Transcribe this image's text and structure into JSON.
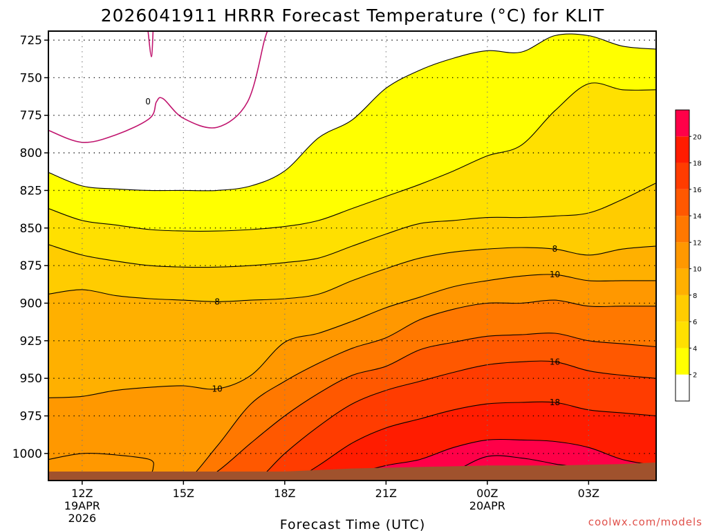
{
  "title": "2026041911 HRRR Forecast Temperature (°C) for KLIT",
  "credit": "coolwx.com/models",
  "colors": {
    "credit": "#e0504a",
    "frame": "#000000",
    "zero_line": "#c0146e",
    "ground": "#a0522d",
    "below_zero": "#ffffff",
    "band_2_4": "#ffff00",
    "band_4_6": "#ffe000",
    "band_6_8": "#ffcc00",
    "band_8_10": "#ffb000",
    "band_10_12": "#ff9800",
    "band_12_14": "#ff7800",
    "band_14_16": "#ff5800",
    "band_16_18": "#ff3c00",
    "band_18_20": "#ff1c00",
    "band_20_22": "#ff0048"
  },
  "chart_data": {
    "type": "heatmap",
    "title": "2026041911 HRRR Forecast Temperature (°C) for KLIT",
    "xlabel": "Forecast Time (UTC)",
    "ylabel": "",
    "x_tick_labels": [
      {
        "hour": 0,
        "label": "12Z",
        "sub": [
          "19APR",
          "2026"
        ]
      },
      {
        "hour": 3,
        "label": "15Z",
        "sub": []
      },
      {
        "hour": 6,
        "label": "18Z",
        "sub": []
      },
      {
        "hour": 9,
        "label": "21Z",
        "sub": []
      },
      {
        "hour": 12,
        "label": "00Z",
        "sub": [
          "20APR"
        ]
      },
      {
        "hour": 15,
        "label": "03Z",
        "sub": []
      }
    ],
    "xlim_hours": [
      -1,
      17
    ],
    "y_ticks": [
      725,
      750,
      775,
      800,
      825,
      850,
      875,
      900,
      925,
      950,
      975,
      1000
    ],
    "ylim_hpa": [
      719,
      1018
    ],
    "grid": true,
    "colorbar": {
      "levels": [
        0,
        2,
        4,
        6,
        8,
        10,
        12,
        14,
        16,
        18,
        20,
        22
      ],
      "tick_labels": [
        "2",
        "4",
        "6",
        "8",
        "10",
        "12",
        "14",
        "16",
        "18",
        "20"
      ]
    },
    "series": [
      {
        "level": 2,
        "values": [
          [
            -1,
            813
          ],
          [
            0,
            822
          ],
          [
            1,
            824
          ],
          [
            2,
            825
          ],
          [
            3,
            825
          ],
          [
            4,
            825
          ],
          [
            5,
            822
          ],
          [
            6,
            812
          ],
          [
            7,
            790
          ],
          [
            8,
            778
          ],
          [
            9,
            757
          ],
          [
            10,
            745
          ],
          [
            11,
            737
          ],
          [
            12,
            732
          ],
          [
            13,
            733
          ],
          [
            14,
            722
          ],
          [
            15,
            722
          ],
          [
            16,
            729
          ],
          [
            17,
            731
          ]
        ]
      },
      {
        "level": 4,
        "values": [
          [
            -1,
            837
          ],
          [
            0,
            845
          ],
          [
            1,
            848
          ],
          [
            2,
            851
          ],
          [
            3,
            852
          ],
          [
            4,
            852
          ],
          [
            5,
            851
          ],
          [
            6,
            849
          ],
          [
            7,
            845
          ],
          [
            8,
            837
          ],
          [
            9,
            829
          ],
          [
            10,
            821
          ],
          [
            11,
            812
          ],
          [
            12,
            802
          ],
          [
            13,
            795
          ],
          [
            14,
            772
          ],
          [
            15,
            754
          ],
          [
            16,
            758
          ],
          [
            17,
            758
          ]
        ]
      },
      {
        "level": 6,
        "values": [
          [
            -1,
            861
          ],
          [
            0,
            868
          ],
          [
            1,
            872
          ],
          [
            2,
            875
          ],
          [
            3,
            876
          ],
          [
            4,
            876
          ],
          [
            5,
            875
          ],
          [
            6,
            873
          ],
          [
            7,
            870
          ],
          [
            8,
            862
          ],
          [
            9,
            854
          ],
          [
            10,
            847
          ],
          [
            11,
            845
          ],
          [
            12,
            843
          ],
          [
            13,
            843
          ],
          [
            14,
            842
          ],
          [
            15,
            840
          ],
          [
            16,
            831
          ],
          [
            17,
            820
          ]
        ]
      },
      {
        "level": 8,
        "values": [
          [
            -1,
            894
          ],
          [
            0,
            891
          ],
          [
            1,
            895
          ],
          [
            2,
            897
          ],
          [
            3,
            898
          ],
          [
            4,
            899
          ],
          [
            5,
            898
          ],
          [
            6,
            897
          ],
          [
            7,
            894
          ],
          [
            8,
            885
          ],
          [
            9,
            877
          ],
          [
            10,
            870
          ],
          [
            11,
            866
          ],
          [
            12,
            864
          ],
          [
            13,
            863
          ],
          [
            14,
            864
          ],
          [
            15,
            868
          ],
          [
            16,
            864
          ],
          [
            17,
            862
          ]
        ]
      },
      {
        "level": 10,
        "values": [
          [
            -1,
            963
          ],
          [
            0,
            962
          ],
          [
            1,
            958
          ],
          [
            2,
            956
          ],
          [
            3,
            955
          ],
          [
            4,
            957
          ],
          [
            5,
            948
          ],
          [
            6,
            926
          ],
          [
            7,
            920
          ],
          [
            8,
            912
          ],
          [
            9,
            903
          ],
          [
            10,
            896
          ],
          [
            11,
            889
          ],
          [
            12,
            885
          ],
          [
            13,
            882
          ],
          [
            14,
            881
          ],
          [
            15,
            885
          ],
          [
            16,
            885
          ],
          [
            17,
            885
          ]
        ]
      },
      {
        "level": 12,
        "values": [
          [
            -1,
            1025
          ],
          [
            0,
            1025
          ],
          [
            2,
            1025
          ],
          [
            3,
            1020
          ],
          [
            4,
            995
          ],
          [
            5,
            967
          ],
          [
            6,
            952
          ],
          [
            7,
            940
          ],
          [
            8,
            930
          ],
          [
            9,
            923
          ],
          [
            10,
            911
          ],
          [
            11,
            904
          ],
          [
            12,
            900
          ],
          [
            13,
            900
          ],
          [
            14,
            898
          ],
          [
            15,
            902
          ],
          [
            16,
            902
          ],
          [
            17,
            902
          ]
        ]
      },
      {
        "level": 14,
        "values": [
          [
            -1,
            1025
          ],
          [
            3,
            1025
          ],
          [
            4,
            1012
          ],
          [
            5,
            993
          ],
          [
            6,
            975
          ],
          [
            7,
            960
          ],
          [
            8,
            948
          ],
          [
            9,
            942
          ],
          [
            10,
            931
          ],
          [
            11,
            926
          ],
          [
            12,
            922
          ],
          [
            13,
            921
          ],
          [
            14,
            920
          ],
          [
            15,
            925
          ],
          [
            16,
            927
          ],
          [
            17,
            929
          ]
        ]
      },
      {
        "level": 16,
        "values": [
          [
            -1,
            1025
          ],
          [
            4,
            1025
          ],
          [
            5,
            1021
          ],
          [
            6,
            1000
          ],
          [
            7,
            982
          ],
          [
            8,
            967
          ],
          [
            9,
            958
          ],
          [
            10,
            952
          ],
          [
            11,
            946
          ],
          [
            12,
            941
          ],
          [
            13,
            939
          ],
          [
            14,
            939
          ],
          [
            15,
            945
          ],
          [
            16,
            948
          ],
          [
            17,
            950
          ]
        ]
      },
      {
        "level": 18,
        "values": [
          [
            -1,
            1025
          ],
          [
            5,
            1025
          ],
          [
            6,
            1021
          ],
          [
            7,
            1008
          ],
          [
            8,
            993
          ],
          [
            9,
            983
          ],
          [
            10,
            977
          ],
          [
            11,
            971
          ],
          [
            12,
            967
          ],
          [
            13,
            966
          ],
          [
            14,
            966
          ],
          [
            15,
            971
          ],
          [
            16,
            973
          ],
          [
            17,
            975
          ]
        ]
      },
      {
        "level": 20,
        "values": [
          [
            -1,
            1025
          ],
          [
            6,
            1025
          ],
          [
            7,
            1021
          ],
          [
            8,
            1014
          ],
          [
            9,
            1008
          ],
          [
            10,
            1004
          ],
          [
            11,
            996
          ],
          [
            12,
            991
          ],
          [
            13,
            991
          ],
          [
            14,
            992
          ],
          [
            15,
            996
          ],
          [
            16,
            1004
          ],
          [
            17,
            1008
          ]
        ]
      },
      {
        "level": 22,
        "values": [
          [
            -1,
            1025
          ],
          [
            8,
            1025
          ],
          [
            9,
            1024
          ],
          [
            10,
            1020
          ],
          [
            11,
            1012
          ],
          [
            12,
            1002
          ],
          [
            13,
            1003
          ],
          [
            14,
            1007
          ],
          [
            14.5,
            1010
          ],
          [
            15,
            1025
          ],
          [
            17,
            1025
          ]
        ]
      }
    ],
    "lobes": [
      {
        "level": 10,
        "values": [
          [
            -1,
            1004
          ],
          [
            0,
            1000
          ],
          [
            1,
            1001
          ],
          [
            2,
            1004
          ],
          [
            2.1,
            1010
          ],
          [
            2,
            1015
          ]
        ]
      },
      {
        "level": 12,
        "values": [
          [
            -1,
            1014
          ],
          [
            0,
            1013
          ],
          [
            1,
            1013
          ],
          [
            2,
            1015
          ]
        ]
      }
    ],
    "zero_isotherm": {
      "level": 0,
      "values": [
        [
          -1,
          785
        ],
        [
          0,
          793
        ],
        [
          1,
          788
        ],
        [
          2,
          777
        ],
        [
          2.2,
          766
        ],
        [
          2.4,
          764
        ],
        [
          3,
          777
        ],
        [
          4,
          783
        ],
        [
          4.9,
          766
        ],
        [
          5.4,
          725
        ],
        [
          5.5,
          719
        ]
      ]
    },
    "zero_spike": [
      [
        1.95,
        719
      ],
      [
        2.05,
        736
      ],
      [
        2.1,
        719
      ]
    ],
    "ground_hpa": [
      [
        -1,
        1012
      ],
      [
        6,
        1012
      ],
      [
        8,
        1010
      ],
      [
        10,
        1009
      ],
      [
        12,
        1008
      ],
      [
        14,
        1008
      ],
      [
        16,
        1007
      ],
      [
        17,
        1006
      ]
    ],
    "contour_labels": [
      {
        "text": "0",
        "x": 1.95,
        "y": 766
      },
      {
        "text": "8",
        "x": 4.0,
        "y": 899
      },
      {
        "text": "10",
        "x": 4.0,
        "y": 957
      },
      {
        "text": "8",
        "x": 14.0,
        "y": 864
      },
      {
        "text": "10",
        "x": 14.0,
        "y": 881
      },
      {
        "text": "16",
        "x": 14.0,
        "y": 939
      },
      {
        "text": "18",
        "x": 14.0,
        "y": 966
      }
    ]
  }
}
